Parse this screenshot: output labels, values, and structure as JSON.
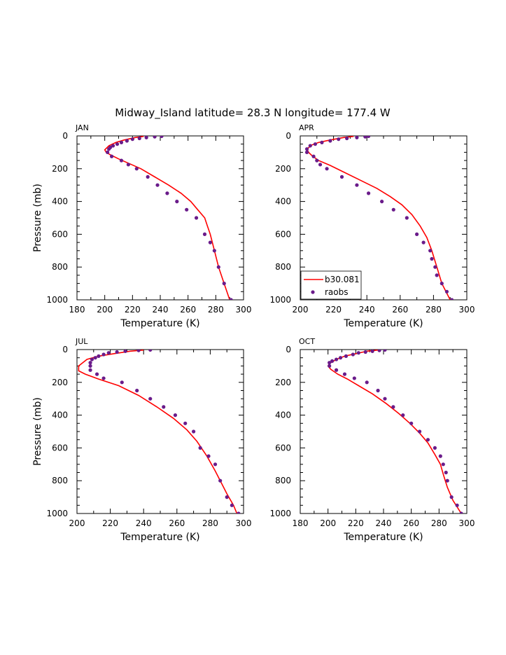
{
  "figure": {
    "title": "Midway_Island  latitude= 28.3 N longitude= 177.4 W"
  },
  "legend": {
    "model_label": "b30.081",
    "obs_label": "raobs",
    "model_color": "#ff0000",
    "obs_color": "#6a1b8a"
  },
  "chart_data": [
    {
      "type": "line",
      "panel": "JAN",
      "title": "JAN",
      "xlabel": "Temperature (K)",
      "ylabel": "Pressure (mb)",
      "xlim": [
        180,
        300
      ],
      "ylim": [
        1000,
        0
      ],
      "xticks": [
        180,
        200,
        220,
        240,
        260,
        280,
        300
      ],
      "yticks": [
        0,
        200,
        400,
        600,
        800,
        1000
      ],
      "series": [
        {
          "name": "b30.081",
          "kind": "line",
          "x": [
            228,
            222,
            214,
            208,
            203,
            200,
            201,
            204,
            210,
            218,
            226,
            236,
            246,
            255,
            262,
            267,
            272,
            274,
            276,
            279,
            282,
            286,
            290
          ],
          "y": [
            3,
            10,
            25,
            40,
            60,
            85,
            100,
            115,
            140,
            170,
            200,
            250,
            300,
            350,
            400,
            450,
            500,
            550,
            600,
            700,
            800,
            900,
            1000
          ]
        },
        {
          "name": "raobs",
          "kind": "scatter",
          "x": [
            241,
            236,
            230,
            225,
            220,
            216,
            212,
            209,
            206,
            204,
            203,
            202,
            205,
            212,
            217,
            223,
            231,
            238,
            245,
            252,
            259,
            266,
            272,
            276,
            279,
            282,
            286,
            291
          ],
          "y": [
            2,
            5,
            10,
            15,
            20,
            30,
            40,
            50,
            60,
            70,
            80,
            100,
            125,
            150,
            175,
            200,
            250,
            300,
            350,
            400,
            450,
            500,
            600,
            650,
            700,
            800,
            900,
            1000
          ]
        }
      ]
    },
    {
      "type": "line",
      "panel": "APR",
      "title": "APR",
      "xlabel": "Temperature (K)",
      "ylabel": "",
      "xlim": [
        200,
        300
      ],
      "ylim": [
        1000,
        0
      ],
      "xticks": [
        200,
        220,
        240,
        260,
        280,
        300
      ],
      "yticks": [
        0,
        200,
        400,
        600,
        800,
        1000
      ],
      "series": [
        {
          "name": "b30.081",
          "kind": "line",
          "x": [
            232,
            226,
            218,
            211,
            207,
            204,
            205,
            207,
            211,
            218,
            226,
            236,
            246,
            254,
            261,
            267,
            272,
            276,
            279,
            282,
            285,
            290
          ],
          "y": [
            3,
            10,
            25,
            40,
            55,
            80,
            100,
            120,
            150,
            180,
            220,
            270,
            320,
            370,
            420,
            480,
            550,
            620,
            700,
            800,
            900,
            1000
          ]
        },
        {
          "name": "raobs",
          "kind": "scatter",
          "x": [
            241,
            239,
            234,
            228,
            223,
            218,
            213,
            209,
            206,
            204,
            204,
            208,
            210,
            212,
            216,
            225,
            234,
            241,
            249,
            256,
            264,
            270,
            274,
            278,
            279,
            281,
            282,
            285,
            288,
            291
          ],
          "y": [
            2,
            5,
            10,
            15,
            20,
            30,
            40,
            50,
            60,
            80,
            100,
            125,
            150,
            175,
            200,
            250,
            300,
            350,
            400,
            450,
            500,
            600,
            650,
            700,
            750,
            800,
            850,
            900,
            950,
            1000
          ]
        }
      ]
    },
    {
      "type": "line",
      "panel": "JUL",
      "title": "JUL",
      "xlabel": "Temperature (K)",
      "ylabel": "Pressure (mb)",
      "xlim": [
        200,
        300
      ],
      "ylim": [
        1000,
        0
      ],
      "xticks": [
        200,
        220,
        240,
        260,
        280,
        300
      ],
      "yticks": [
        0,
        200,
        400,
        600,
        800,
        1000
      ],
      "series": [
        {
          "name": "b30.081",
          "kind": "line",
          "x": [
            240,
            232,
            222,
            213,
            206,
            201,
            201,
            205,
            213,
            225,
            237,
            248,
            258,
            266,
            272,
            278,
            283,
            286,
            290,
            294,
            296
          ],
          "y": [
            3,
            10,
            25,
            40,
            60,
            100,
            130,
            150,
            180,
            220,
            280,
            350,
            420,
            490,
            560,
            650,
            740,
            800,
            880,
            950,
            1000
          ]
        },
        {
          "name": "raobs",
          "kind": "scatter",
          "x": [
            244,
            237,
            229,
            224,
            219,
            216,
            213,
            211,
            209,
            208,
            208,
            208,
            212,
            216,
            227,
            236,
            244,
            252,
            259,
            265,
            270,
            274,
            279,
            283,
            286,
            290,
            293,
            297
          ],
          "y": [
            2,
            5,
            10,
            15,
            20,
            30,
            40,
            50,
            60,
            80,
            100,
            125,
            150,
            175,
            200,
            250,
            300,
            350,
            400,
            450,
            500,
            600,
            650,
            700,
            800,
            900,
            950,
            1000
          ]
        }
      ]
    },
    {
      "type": "line",
      "panel": "OCT",
      "title": "OCT",
      "xlabel": "Temperature (K)",
      "ylabel": "",
      "xlim": [
        180,
        300
      ],
      "ylim": [
        1000,
        0
      ],
      "xticks": [
        180,
        200,
        220,
        240,
        260,
        280,
        300
      ],
      "yticks": [
        0,
        200,
        400,
        600,
        800,
        1000
      ],
      "series": [
        {
          "name": "b30.081",
          "kind": "line",
          "x": [
            236,
            228,
            220,
            212,
            206,
            201,
            200,
            202,
            207,
            214,
            222,
            232,
            242,
            251,
            259,
            266,
            272,
            277,
            281,
            283,
            286,
            290,
            296
          ],
          "y": [
            3,
            10,
            25,
            40,
            60,
            85,
            100,
            120,
            150,
            180,
            220,
            270,
            330,
            390,
            450,
            510,
            570,
            640,
            700,
            760,
            840,
            920,
            1000
          ]
        },
        {
          "name": "raobs",
          "kind": "scatter",
          "x": [
            241,
            237,
            232,
            227,
            222,
            218,
            213,
            209,
            206,
            203,
            201,
            201,
            206,
            212,
            219,
            228,
            236,
            241,
            247,
            254,
            260,
            266,
            272,
            277,
            281,
            283,
            285,
            286,
            289,
            293,
            296
          ],
          "y": [
            2,
            5,
            10,
            15,
            20,
            30,
            40,
            50,
            60,
            70,
            80,
            100,
            125,
            150,
            175,
            200,
            250,
            300,
            350,
            400,
            450,
            500,
            550,
            600,
            650,
            700,
            750,
            800,
            900,
            950,
            1000
          ]
        }
      ]
    }
  ]
}
